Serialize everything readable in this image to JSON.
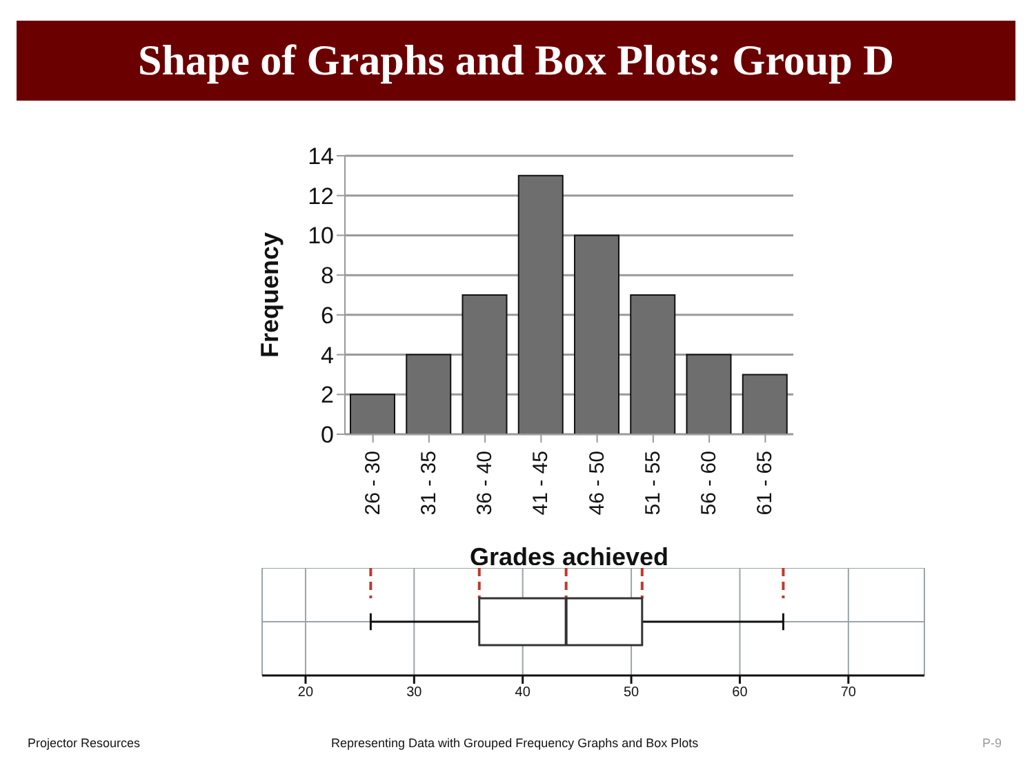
{
  "chart_data": [
    {
      "type": "bar",
      "title": "Shape of Graphs and Box Plots: Group D",
      "xlabel": "Grades achieved",
      "ylabel": "Frequency",
      "categories": [
        "26 - 30",
        "31 - 35",
        "36 - 40",
        "41 - 45",
        "46 - 50",
        "51 - 55",
        "56 - 60",
        "61 - 65"
      ],
      "values": [
        2,
        4,
        7,
        13,
        10,
        7,
        4,
        3
      ],
      "color": "#6e6e6e",
      "ylim": [
        0,
        14
      ],
      "yticks": [
        0,
        2,
        4,
        6,
        8,
        10,
        12,
        14
      ],
      "grid": "y",
      "annotations": [
        "Projector Resources",
        "Representing Data with Grouped Frequency Graphs and Box Plots",
        "P-9"
      ]
    },
    {
      "type": "box",
      "orientation": "horizontal",
      "categories": [
        null
      ],
      "boxes": [
        {
          "low": 26,
          "q1": 36,
          "median": 44,
          "q3": 51,
          "high": 64
        }
      ],
      "xlim": [
        16,
        77
      ],
      "xticks": [
        20,
        30,
        40,
        50,
        60,
        70
      ],
      "grid": true,
      "ref_lines": [
        {
          "axis": "x",
          "value": 26,
          "color": "#c0392b",
          "line_style": "dashed"
        },
        {
          "axis": "x",
          "value": 36,
          "color": "#c0392b",
          "line_style": "dashed"
        },
        {
          "axis": "x",
          "value": 44,
          "color": "#c0392b",
          "line_style": "dashed"
        },
        {
          "axis": "x",
          "value": 51,
          "color": "#c0392b",
          "line_style": "dashed"
        },
        {
          "axis": "x",
          "value": 64,
          "color": "#c0392b",
          "line_style": "dashed"
        }
      ]
    }
  ]
}
